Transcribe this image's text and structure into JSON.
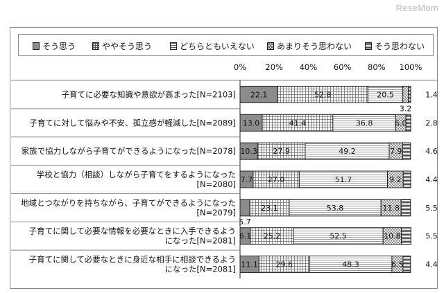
{
  "watermark": "ReseMom",
  "colors": {
    "s1": "#8c8c8c",
    "s2": "#ffffff",
    "s3": "#ffffff",
    "s4": "#ffffff",
    "s5": "#ffffff",
    "border": "#8a8a8a",
    "bar_edge": "#222222"
  },
  "chart_data": {
    "type": "bar",
    "orientation": "horizontal",
    "stacked": "percent",
    "xlim": [
      0,
      100
    ],
    "x_ticks": [
      "0%",
      "20%",
      "40%",
      "60%",
      "80%",
      "100%"
    ],
    "legend_position": "top",
    "grid": false,
    "categories": [
      [
        "子育てに必要な知識や意欲が高まった[N=2103]"
      ],
      [
        "子育てに対して悩みや不安、孤立感が軽減した[N=2089]"
      ],
      [
        "家族で協力しながら子育てができるようになった[N=2078]"
      ],
      [
        "学校と協力（相談）しながら子育てをするようになった",
        "[N=2080]"
      ],
      [
        "地域とつながりを持ちながら、子育てができるようになった",
        "[N=2079]"
      ],
      [
        "子育てに関して必要な情報を必要なときに入手できるよう",
        "になった[N=2081]"
      ],
      [
        "子育てに関して必要なときに身近な相手に相談できるよう",
        "になった[N=2081]"
      ]
    ],
    "series": [
      {
        "name": "そう思う",
        "pattern": "solid-gray",
        "values": [
          22.1,
          13.0,
          10.3,
          7.7,
          5.7,
          6.1,
          11.1
        ]
      },
      {
        "name": "ややそう思う",
        "pattern": "grid",
        "values": [
          52.8,
          41.4,
          27.9,
          27.0,
          23.1,
          25.2,
          29.6
        ]
      },
      {
        "name": "どちらともいえない",
        "pattern": "horizontal-lines",
        "values": [
          20.5,
          36.8,
          49.2,
          51.7,
          53.8,
          52.5,
          48.3
        ]
      },
      {
        "name": "あまりそう思わない",
        "pattern": "crosshatch",
        "values": [
          3.2,
          6.0,
          7.9,
          9.2,
          11.8,
          10.8,
          6.5
        ]
      },
      {
        "name": "そう思わない",
        "pattern": "dense",
        "values": [
          1.4,
          2.8,
          4.6,
          4.4,
          5.5,
          5.5,
          4.4
        ]
      }
    ],
    "value_labels": [
      [
        "22.1",
        "52.8",
        "20.5",
        "3.2",
        "1.4"
      ],
      [
        "13.0",
        "41.4",
        "36.8",
        "6.0",
        "2.8"
      ],
      [
        "10.3",
        "27.9",
        "49.2",
        "7.9",
        "4.6"
      ],
      [
        "7.7",
        "27.0",
        "51.7",
        "9.2",
        "4.4"
      ],
      [
        "5.7",
        "23.1",
        "53.8",
        "11.8",
        "5.5"
      ],
      [
        "6.1",
        "25.2",
        "52.5",
        "10.8",
        "5.5"
      ],
      [
        "11.1",
        "29.6",
        "48.3",
        "6.5",
        "4.4"
      ]
    ]
  }
}
